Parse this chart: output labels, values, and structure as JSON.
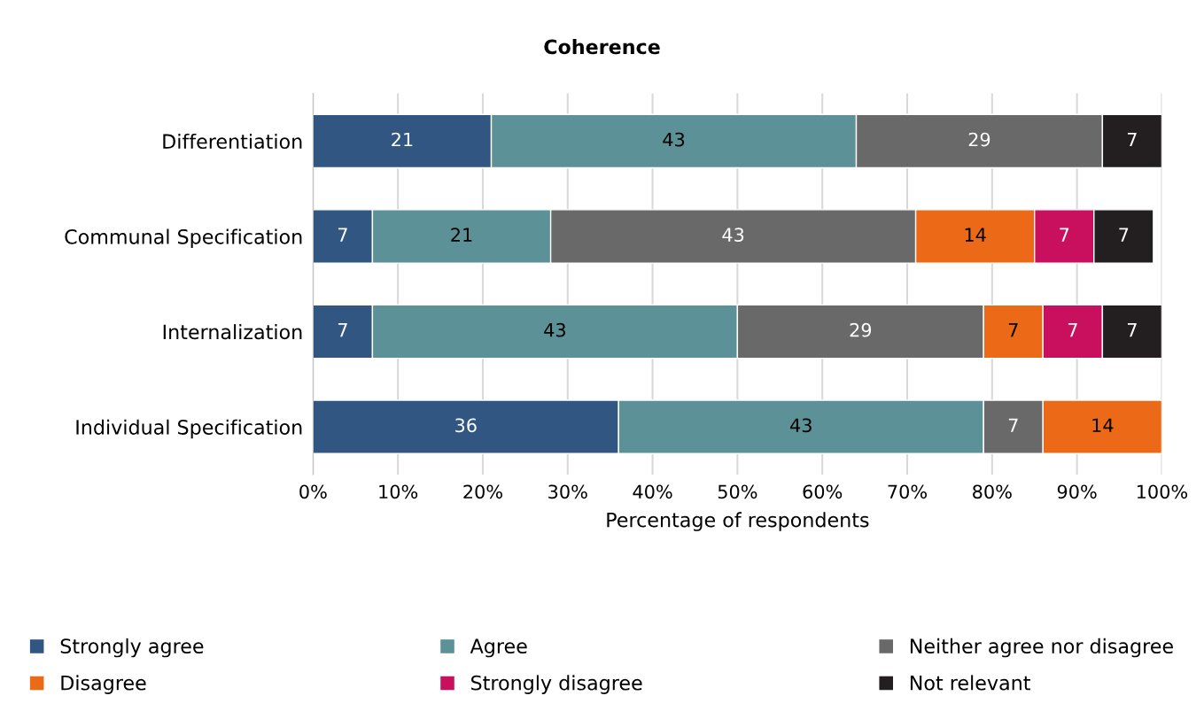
{
  "chart_data": {
    "type": "bar",
    "orientation": "horizontal",
    "stacked": true,
    "title": "Coherence",
    "xlabel": "Percentage of respondents",
    "categories": [
      "Differentiation",
      "Communal Specification",
      "Internalization",
      "Individual Specification"
    ],
    "series": [
      {
        "name": "Strongly agree",
        "color": "#315682",
        "values": [
          21,
          7,
          7,
          36
        ]
      },
      {
        "name": "Agree",
        "color": "#5b9197",
        "values": [
          43,
          21,
          43,
          43
        ]
      },
      {
        "name": "Neither agree nor disagree",
        "color": "#696969",
        "values": [
          29,
          43,
          29,
          7
        ]
      },
      {
        "name": "Disagree",
        "color": "#ec6a17",
        "values": [
          null,
          14,
          7,
          14
        ]
      },
      {
        "name": "Strongly disagree",
        "color": "#c8105e",
        "values": [
          null,
          7,
          7,
          null
        ]
      },
      {
        "name": "Not relevant",
        "color": "#231f20",
        "values": [
          7,
          7,
          7,
          null
        ]
      }
    ],
    "xlim": [
      0,
      100
    ],
    "xticks": [
      {
        "value": 0,
        "label": "0%"
      },
      {
        "value": 10,
        "label": "10%"
      },
      {
        "value": 20,
        "label": "20%"
      },
      {
        "value": 30,
        "label": "30%"
      },
      {
        "value": 40,
        "label": "40%"
      },
      {
        "value": 50,
        "label": "50%"
      },
      {
        "value": 60,
        "label": "60%"
      },
      {
        "value": 70,
        "label": "70%"
      },
      {
        "value": 80,
        "label": "80%"
      },
      {
        "value": 90,
        "label": "90%"
      },
      {
        "value": 100,
        "label": "100%"
      }
    ],
    "grid": "x",
    "legend": "bottom",
    "data_labels": true
  }
}
